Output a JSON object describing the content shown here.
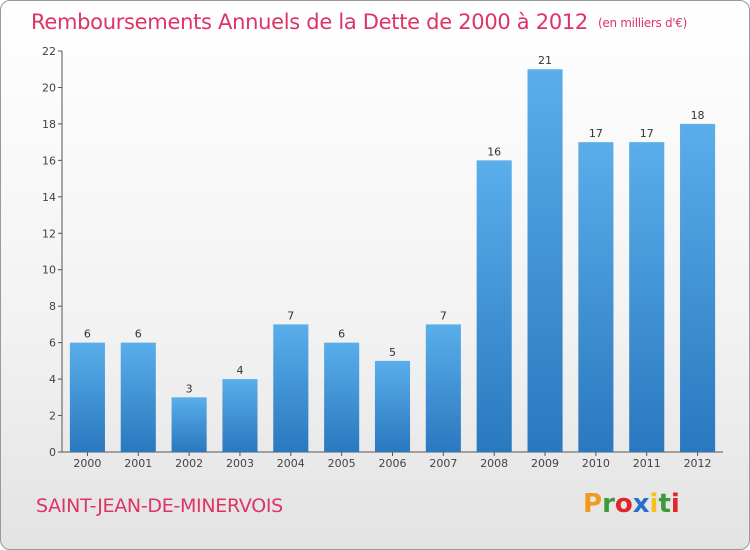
{
  "header": {
    "title": "Remboursements Annuels de la Dette de 2000 à 2012",
    "unit": "(en milliers d'€)"
  },
  "footer": {
    "location": "SAINT-JEAN-DE-MINERVOIS",
    "brand": "Proxiti",
    "brand_colors": [
      "#f29a1f",
      "#3c9a3c",
      "#e0252b",
      "#2a6fc9",
      "#f2c21f",
      "#3c9a3c",
      "#e0252b"
    ]
  },
  "chart_data": {
    "type": "bar",
    "title": "Remboursements Annuels de la Dette de 2000 à 2012",
    "xlabel": "",
    "ylabel": "",
    "categories": [
      "2000",
      "2001",
      "2002",
      "2003",
      "2004",
      "2005",
      "2006",
      "2007",
      "2008",
      "2009",
      "2010",
      "2011",
      "2012"
    ],
    "values": [
      6,
      6,
      3,
      4,
      7,
      6,
      5,
      7,
      16,
      21,
      17,
      17,
      18
    ],
    "labels": [
      "6",
      "6",
      "3",
      "4",
      "7",
      "6",
      "5",
      "7",
      "16",
      "21",
      "17",
      "17",
      "18"
    ],
    "ylim": [
      0,
      22
    ],
    "yticks": [
      0,
      2,
      4,
      6,
      8,
      10,
      12,
      14,
      16,
      18,
      20,
      22
    ],
    "grid": false,
    "bar_color": "#3f95d8"
  }
}
